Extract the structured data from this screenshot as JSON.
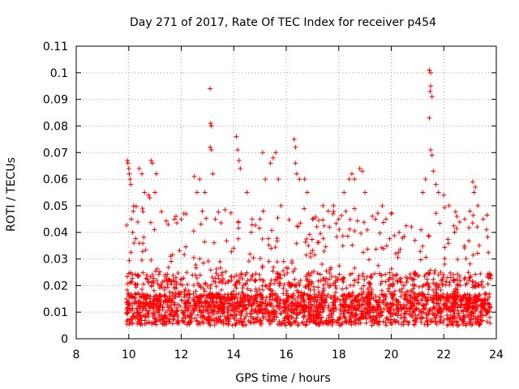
{
  "chart_data": {
    "type": "scatter",
    "title": "Day 271 of 2017, Rate Of TEC Index for receiver p454",
    "xlabel": "GPS time / hours",
    "ylabel": "ROTI / TECUs",
    "xlim": [
      8,
      24
    ],
    "ylim": [
      0,
      0.11
    ],
    "x_ticks": [
      "8",
      "10",
      "12",
      "14",
      "16",
      "18",
      "20",
      "22",
      "24"
    ],
    "x_tick_values": [
      8,
      10,
      12,
      14,
      16,
      18,
      20,
      22,
      24
    ],
    "y_ticks": [
      "0",
      "0.01",
      "0.02",
      "0.03",
      "0.04",
      "0.05",
      "0.06",
      "0.07",
      "0.08",
      "0.09",
      "0.1",
      "0.11"
    ],
    "y_tick_values": [
      0,
      0.01,
      0.02,
      0.03,
      0.04,
      0.05,
      0.06,
      0.07,
      0.08,
      0.09,
      0.1,
      0.11
    ],
    "grid": true,
    "marker": "plus",
    "series_color": "#ff0000",
    "x_range_of_data": [
      9.9,
      23.8
    ],
    "points": [
      [
        9.95,
        0.067
      ],
      [
        9.97,
        0.066
      ],
      [
        10.0,
        0.064
      ],
      [
        10.02,
        0.062
      ],
      [
        10.05,
        0.06
      ],
      [
        10.08,
        0.058
      ],
      [
        10.1,
        0.045
      ],
      [
        10.15,
        0.04
      ],
      [
        10.2,
        0.036
      ],
      [
        10.4,
        0.064
      ],
      [
        10.5,
        0.062
      ],
      [
        10.6,
        0.055
      ],
      [
        10.75,
        0.054
      ],
      [
        10.8,
        0.053
      ],
      [
        10.85,
        0.067
      ],
      [
        10.9,
        0.066
      ],
      [
        11.0,
        0.055
      ],
      [
        11.05,
        0.062
      ],
      [
        11.5,
        0.043
      ],
      [
        11.8,
        0.046
      ],
      [
        12.0,
        0.045
      ],
      [
        12.1,
        0.047
      ],
      [
        12.5,
        0.061
      ],
      [
        12.6,
        0.055
      ],
      [
        12.7,
        0.06
      ],
      [
        12.9,
        0.055
      ],
      [
        13.1,
        0.094
      ],
      [
        13.12,
        0.081
      ],
      [
        13.15,
        0.08
      ],
      [
        13.1,
        0.072
      ],
      [
        13.15,
        0.071
      ],
      [
        13.2,
        0.062
      ],
      [
        13.3,
        0.045
      ],
      [
        14.1,
        0.076
      ],
      [
        14.15,
        0.071
      ],
      [
        14.2,
        0.067
      ],
      [
        14.25,
        0.064
      ],
      [
        14.5,
        0.055
      ],
      [
        14.7,
        0.045
      ],
      [
        15.0,
        0.045
      ],
      [
        15.1,
        0.07
      ],
      [
        15.2,
        0.06
      ],
      [
        15.4,
        0.066
      ],
      [
        15.5,
        0.068
      ],
      [
        15.6,
        0.07
      ],
      [
        15.7,
        0.06
      ],
      [
        15.8,
        0.05
      ],
      [
        16.3,
        0.075
      ],
      [
        16.35,
        0.072
      ],
      [
        16.35,
        0.066
      ],
      [
        16.4,
        0.062
      ],
      [
        16.5,
        0.06
      ],
      [
        16.7,
        0.06
      ],
      [
        16.8,
        0.055
      ],
      [
        17.0,
        0.045
      ],
      [
        17.4,
        0.05
      ],
      [
        17.6,
        0.048
      ],
      [
        17.8,
        0.05
      ],
      [
        18.0,
        0.045
      ],
      [
        18.2,
        0.055
      ],
      [
        18.4,
        0.06
      ],
      [
        18.5,
        0.062
      ],
      [
        18.6,
        0.06
      ],
      [
        18.8,
        0.064
      ],
      [
        18.9,
        0.063
      ],
      [
        19.0,
        0.055
      ],
      [
        19.4,
        0.045
      ],
      [
        19.8,
        0.045
      ],
      [
        20.0,
        0.047
      ],
      [
        20.3,
        0.04
      ],
      [
        21.2,
        0.055
      ],
      [
        21.3,
        0.06
      ],
      [
        21.45,
        0.101
      ],
      [
        21.5,
        0.1
      ],
      [
        21.5,
        0.095
      ],
      [
        21.48,
        0.093
      ],
      [
        21.55,
        0.091
      ],
      [
        21.45,
        0.083
      ],
      [
        21.5,
        0.071
      ],
      [
        21.55,
        0.069
      ],
      [
        21.6,
        0.063
      ],
      [
        21.7,
        0.058
      ],
      [
        21.8,
        0.055
      ],
      [
        22.0,
        0.054
      ],
      [
        22.2,
        0.05
      ],
      [
        22.5,
        0.046
      ],
      [
        22.8,
        0.045
      ],
      [
        23.0,
        0.048
      ],
      [
        23.1,
        0.059
      ],
      [
        23.15,
        0.055
      ],
      [
        23.2,
        0.057
      ],
      [
        23.3,
        0.05
      ],
      [
        23.5,
        0.045
      ]
    ]
  }
}
